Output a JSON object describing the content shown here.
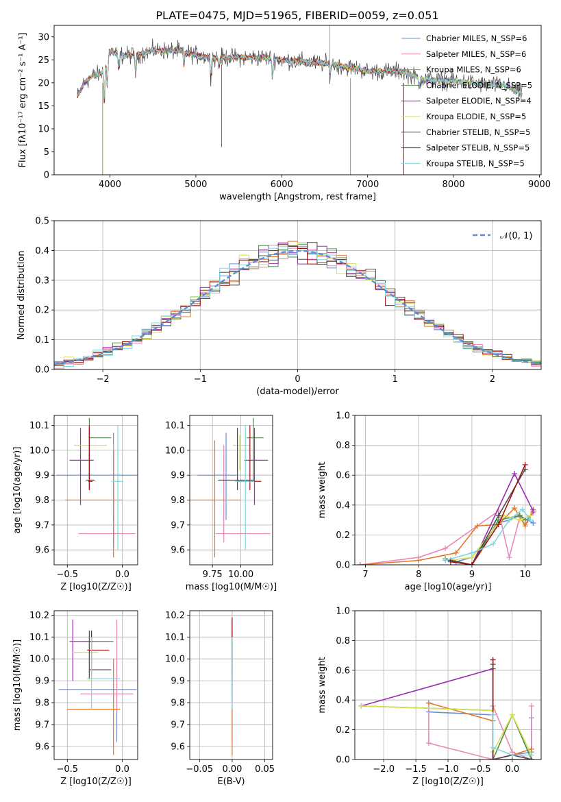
{
  "figure": {
    "title": "PLATE=0475, MJD=51965, FIBERID=0059, z=0.051"
  },
  "colors": {
    "Chabrier MILES": "#6a8fd8",
    "Salpeter MILES": "#e887b8",
    "Kroupa MILES": "#e2782a",
    "Chabrier ELODIE": "#4f8a4f",
    "Salpeter ELODIE": "#9a2fb0",
    "Kroupa ELODIE": "#d9e24a",
    "Chabrier STELIB": "#4a4a4a",
    "Salpeter STELIB": "#a01515",
    "Kroupa STELIB": "#7fd6e0",
    "grid": "#b0b0b0",
    "normal_curve": "#5b8ed6"
  },
  "chart_data": [
    {
      "id": "spectrum",
      "type": "line",
      "xlabel": "wavelength [Angstrom, rest frame]",
      "ylabel": "Flux [fλ10⁻¹⁷ erg cm⁻² s⁻¹ A⁻¹]",
      "xlim": [
        3350,
        9020
      ],
      "ylim": [
        0,
        32.5
      ],
      "xticks": [
        4000,
        5000,
        6000,
        7000,
        8000,
        9000
      ],
      "yticks": [
        0,
        5,
        10,
        15,
        20,
        25,
        30
      ],
      "legend_position": "top-right",
      "grid": false,
      "continuum": {
        "x": [
          3620,
          3700,
          3800,
          3900,
          3950,
          4000,
          4100,
          4300,
          4500,
          4800,
          5000,
          5200,
          5500,
          5800,
          6000,
          6300,
          6600,
          6900,
          7000,
          7200,
          7400,
          7600,
          7800,
          8000,
          8200,
          8400,
          8600,
          8800
        ],
        "y": [
          17,
          20,
          21.5,
          22,
          24,
          27,
          26,
          26,
          27,
          27,
          26,
          25.5,
          25.5,
          25.5,
          25,
          24.5,
          24,
          23,
          22.5,
          22.5,
          22.5,
          21,
          20.5,
          20.5,
          20,
          19.5,
          19.5,
          17.5
        ]
      },
      "absorption_features": [
        {
          "x": 3934,
          "depth": 7
        },
        {
          "x": 3969,
          "depth": 6
        },
        {
          "x": 4102,
          "depth": 3
        },
        {
          "x": 4300,
          "depth": 4
        },
        {
          "x": 4861,
          "depth": 3
        },
        {
          "x": 5175,
          "depth": 4
        },
        {
          "x": 5270,
          "depth": 2
        },
        {
          "x": 5893,
          "depth": 4
        },
        {
          "x": 6563,
          "depth": 2
        },
        {
          "x": 7600,
          "depth": 2
        }
      ],
      "series": [
        {
          "name": "Chabrier MILES, N_SSP=6"
        },
        {
          "name": "Salpeter MILES, N_SSP=6"
        },
        {
          "name": "Kroupa MILES, N_SSP=6"
        },
        {
          "name": "Chabrier ELODIE, N_SSP=5"
        },
        {
          "name": "Salpeter ELODIE, N_SSP=4"
        },
        {
          "name": "Kroupa ELODIE, N_SSP=5"
        },
        {
          "name": "Chabrier STELIB, N_SSP=5"
        },
        {
          "name": "Salpeter STELIB, N_SSP=5"
        },
        {
          "name": "Kroupa STELIB, N_SSP=5"
        }
      ]
    },
    {
      "id": "residuals",
      "type": "histogram",
      "xlabel": "(data-model)/error",
      "ylabel": "Normed distribution",
      "xlim": [
        -2.5,
        2.5
      ],
      "ylim": [
        0,
        0.5
      ],
      "xticks": [
        -2,
        -1,
        0,
        1,
        2
      ],
      "yticks": [
        0.0,
        0.1,
        0.2,
        0.3,
        0.4,
        0.5
      ],
      "grid": true,
      "legend_position": "top-right",
      "normal_curve_label": "𝒩(0, 1)",
      "bin_width": 0.1,
      "n_series": 9
    },
    {
      "id": "age_vs_Z",
      "type": "scatter",
      "xlabel": "Z [log10(Z/Z☉)]",
      "ylabel": "age [log10(age/yr)]",
      "xlim": [
        -0.62,
        0.14
      ],
      "ylim": [
        9.54,
        10.14
      ],
      "xticks": [
        -0.5,
        0.0
      ],
      "yticks": [
        9.6,
        9.7,
        9.8,
        9.9,
        10.0,
        10.1
      ],
      "points": [
        {
          "series": "Chabrier MILES",
          "x": -0.08,
          "y": 9.9,
          "xlo": -0.6,
          "xhi": 0.14,
          "ylo": 9.72,
          "yhi": 10.07
        },
        {
          "series": "Salpeter MILES",
          "x": -0.08,
          "y": 9.665,
          "xlo": -0.4,
          "xhi": 0.12,
          "ylo": 9.63,
          "yhi": 10.02
        },
        {
          "series": "Kroupa MILES",
          "x": -0.08,
          "y": 9.8,
          "xlo": -0.52,
          "xhi": 0.0,
          "ylo": 9.57,
          "yhi": 10.0
        },
        {
          "series": "Chabrier ELODIE",
          "x": -0.3,
          "y": 10.05,
          "xlo": -0.3,
          "xhi": -0.1,
          "ylo": 9.88,
          "yhi": 10.13
        },
        {
          "series": "Salpeter ELODIE",
          "x": -0.38,
          "y": 9.96,
          "xlo": -0.48,
          "xhi": -0.26,
          "ylo": 9.78,
          "yhi": 10.09
        },
        {
          "series": "Kroupa ELODIE",
          "x": -0.3,
          "y": 10.02,
          "xlo": -0.44,
          "xhi": -0.14,
          "ylo": 9.92,
          "yhi": 10.06
        },
        {
          "series": "Chabrier STELIB",
          "x": -0.3,
          "y": 9.88,
          "xlo": -0.33,
          "xhi": -0.25,
          "ylo": 9.84,
          "yhi": 10.09
        },
        {
          "series": "Salpeter STELIB",
          "x": -0.3,
          "y": 9.875,
          "xlo": -0.31,
          "xhi": -0.27,
          "ylo": 9.84,
          "yhi": 10.1
        },
        {
          "series": "Kroupa STELIB",
          "x": -0.04,
          "y": 9.875,
          "xlo": -0.1,
          "xhi": 0.01,
          "ylo": 9.6,
          "yhi": 10.1
        }
      ]
    },
    {
      "id": "age_vs_mass",
      "type": "scatter",
      "xlabel": "mass [log10(M/M☉)]",
      "ylabel": "",
      "xlim": [
        9.55,
        10.28
      ],
      "ylim": [
        9.54,
        10.14
      ],
      "xticks": [
        9.75,
        10.0
      ],
      "tick_labels_x": [
        "9.75",
        "10.00"
      ],
      "yticks": [
        9.6,
        9.7,
        9.8,
        9.9,
        10.0,
        10.1
      ],
      "points": [
        {
          "series": "Chabrier MILES",
          "x": 9.87,
          "y": 9.9,
          "xlo": 9.62,
          "xhi": 9.97,
          "ylo": 9.72,
          "yhi": 10.07
        },
        {
          "series": "Salpeter MILES",
          "x": 9.85,
          "y": 9.665,
          "xlo": 9.78,
          "xhi": 10.26,
          "ylo": 9.63,
          "yhi": 10.02
        },
        {
          "series": "Kroupa MILES",
          "x": 9.77,
          "y": 9.8,
          "xlo": 9.55,
          "xhi": 10.0,
          "ylo": 9.57,
          "yhi": 10.04
        },
        {
          "series": "Chabrier ELODIE",
          "x": 10.11,
          "y": 10.05,
          "xlo": 10.05,
          "xhi": 10.2,
          "ylo": 9.88,
          "yhi": 10.13
        },
        {
          "series": "Salpeter ELODIE",
          "x": 10.12,
          "y": 9.96,
          "xlo": 10.03,
          "xhi": 10.24,
          "ylo": 9.78,
          "yhi": 10.09
        },
        {
          "series": "Kroupa ELODIE",
          "x": 9.99,
          "y": 10.02,
          "xlo": 9.93,
          "xhi": 10.08,
          "ylo": 9.92,
          "yhi": 10.06
        },
        {
          "series": "Chabrier STELIB",
          "x": 9.97,
          "y": 9.88,
          "xlo": 9.8,
          "xhi": 10.12,
          "ylo": 9.84,
          "yhi": 10.09
        },
        {
          "series": "Salpeter STELIB",
          "x": 10.08,
          "y": 9.875,
          "xlo": 9.97,
          "xhi": 10.18,
          "ylo": 9.84,
          "yhi": 10.1
        },
        {
          "series": "Kroupa STELIB",
          "x": 10.04,
          "y": 9.875,
          "xlo": 9.95,
          "xhi": 10.12,
          "ylo": 9.6,
          "yhi": 10.1
        }
      ]
    },
    {
      "id": "weight_vs_age",
      "type": "line",
      "xlabel": "age  [log10(age/yr)]",
      "ylabel": "mass weight",
      "xlim": [
        6.8,
        10.3
      ],
      "ylim": [
        0,
        1.0
      ],
      "xticks": [
        7,
        8,
        9,
        10
      ],
      "yticks": [
        0.0,
        0.2,
        0.4,
        0.6,
        0.8,
        1.0
      ],
      "grid": true,
      "series": [
        {
          "name": "Chabrier MILES",
          "x": [
            8.7,
            9.0,
            9.5,
            9.7,
            9.9,
            10.05,
            10.15
          ],
          "y": [
            0.02,
            0.05,
            0.28,
            0.3,
            0.33,
            0.3,
            0.28
          ]
        },
        {
          "name": "Salpeter MILES",
          "x": [
            6.9,
            8.0,
            8.5,
            9.5,
            9.7,
            9.9,
            10.0,
            10.15
          ],
          "y": [
            0.0,
            0.05,
            0.11,
            0.36,
            0.05,
            0.32,
            0.27,
            0.35
          ]
        },
        {
          "name": "Kroupa MILES",
          "x": [
            6.9,
            8.0,
            8.7,
            9.1,
            9.5,
            9.8,
            10.0,
            10.15
          ],
          "y": [
            0.0,
            0.03,
            0.08,
            0.26,
            0.27,
            0.38,
            0.26,
            0.37
          ]
        },
        {
          "name": "Chabrier ELODIE",
          "x": [
            8.5,
            9.0,
            9.5,
            9.9,
            10.0
          ],
          "y": [
            0.04,
            0.0,
            0.3,
            0.33,
            0.3
          ]
        },
        {
          "name": "Salpeter ELODIE",
          "x": [
            8.6,
            9.0,
            9.8,
            10.15
          ],
          "y": [
            0.03,
            0.0,
            0.61,
            0.36
          ]
        },
        {
          "name": "Kroupa ELODIE",
          "x": [
            8.6,
            9.0,
            9.6,
            9.9,
            10.1
          ],
          "y": [
            0.03,
            0.05,
            0.33,
            0.3,
            0.33
          ]
        },
        {
          "name": "Chabrier STELIB",
          "x": [
            8.6,
            9.0,
            9.5,
            10.0
          ],
          "y": [
            0.03,
            0.0,
            0.33,
            0.64
          ]
        },
        {
          "name": "Salpeter STELIB",
          "x": [
            8.6,
            9.0,
            9.5,
            10.0
          ],
          "y": [
            0.02,
            0.0,
            0.27,
            0.67
          ]
        },
        {
          "name": "Kroupa STELIB",
          "x": [
            8.5,
            9.0,
            9.4,
            9.7,
            9.95,
            10.1
          ],
          "y": [
            0.03,
            0.08,
            0.14,
            0.3,
            0.37,
            0.3
          ]
        }
      ]
    },
    {
      "id": "mass_vs_Z",
      "type": "scatter",
      "xlabel": "Z [log10(Z/Z☉)]",
      "ylabel": "mass [log10(M/M☉)]",
      "xlim": [
        -0.62,
        0.14
      ],
      "ylim": [
        9.54,
        10.22
      ],
      "xticks": [
        -0.5,
        0.0
      ],
      "yticks": [
        9.6,
        9.7,
        9.8,
        9.9,
        10.0,
        10.1,
        10.2
      ],
      "points": [
        {
          "series": "Chabrier MILES",
          "x": -0.05,
          "y": 9.86,
          "xlo": -0.58,
          "xhi": 0.13,
          "ylo": 9.62,
          "yhi": 10.0
        },
        {
          "series": "Salpeter MILES",
          "x": -0.05,
          "y": 9.84,
          "xlo": -0.38,
          "xhi": 0.1,
          "ylo": 9.76,
          "yhi": 10.18
        },
        {
          "series": "Kroupa MILES",
          "x": -0.08,
          "y": 9.77,
          "xlo": -0.5,
          "xhi": -0.02,
          "ylo": 9.56,
          "yhi": 10.0
        },
        {
          "series": "Chabrier ELODIE",
          "x": -0.28,
          "y": 10.08,
          "xlo": -0.32,
          "xhi": -0.08,
          "ylo": 9.97,
          "yhi": 10.12
        },
        {
          "series": "Salpeter ELODIE",
          "x": -0.45,
          "y": 10.08,
          "xlo": -0.48,
          "xhi": -0.26,
          "ylo": 9.9,
          "yhi": 10.18
        },
        {
          "series": "Kroupa ELODIE",
          "x": -0.3,
          "y": 10.03,
          "xlo": -0.45,
          "xhi": -0.22,
          "ylo": 9.9,
          "yhi": 10.09
        },
        {
          "series": "Chabrier STELIB",
          "x": -0.3,
          "y": 9.95,
          "xlo": -0.3,
          "xhi": -0.1,
          "ylo": 9.91,
          "yhi": 10.13
        },
        {
          "series": "Salpeter STELIB",
          "x": -0.28,
          "y": 10.04,
          "xlo": -0.32,
          "xhi": -0.12,
          "ylo": 9.92,
          "yhi": 10.13
        },
        {
          "series": "Kroupa STELIB",
          "x": -0.28,
          "y": 9.91,
          "xlo": -0.32,
          "xhi": -0.02,
          "ylo": 9.77,
          "yhi": 10.1
        }
      ]
    },
    {
      "id": "mass_vs_ebv",
      "type": "scatter",
      "xlabel": "E(B-V)",
      "ylabel": "",
      "xlim": [
        -0.065,
        0.062
      ],
      "ylim": [
        9.54,
        10.22
      ],
      "xticks": [
        -0.05,
        0.0,
        0.05
      ],
      "yticks": [
        9.6,
        9.7,
        9.8,
        9.9,
        10.0,
        10.1,
        10.2
      ],
      "points": [
        {
          "series": "Chabrier MILES",
          "x": 0.0,
          "y": 9.86,
          "ylo": 9.62,
          "yhi": 10.0
        },
        {
          "series": "Salpeter MILES",
          "x": 0.0,
          "y": 9.84,
          "ylo": 9.76,
          "yhi": 10.18
        },
        {
          "series": "Kroupa MILES",
          "x": 0.0,
          "y": 9.77,
          "ylo": 9.56,
          "yhi": 10.0
        },
        {
          "series": "Chabrier ELODIE",
          "x": 0.0,
          "y": 10.08,
          "ylo": 9.97,
          "yhi": 10.12
        },
        {
          "series": "Salpeter ELODIE",
          "x": 0.0,
          "y": 10.08,
          "ylo": 9.9,
          "yhi": 10.18
        },
        {
          "series": "Kroupa ELODIE",
          "x": 0.0,
          "y": 10.03,
          "ylo": 9.9,
          "yhi": 10.09
        },
        {
          "series": "Chabrier STELIB",
          "x": 0.0,
          "y": 9.95,
          "ylo": 9.81,
          "yhi": 10.13
        },
        {
          "series": "Salpeter STELIB",
          "x": 0.0,
          "y": 10.04,
          "ylo": 9.92,
          "yhi": 10.19
        },
        {
          "series": "Kroupa STELIB",
          "x": 0.0,
          "y": 9.91,
          "ylo": 9.77,
          "yhi": 10.1
        }
      ]
    },
    {
      "id": "weight_vs_Z",
      "type": "line",
      "xlabel": "Z [log10(Z/Z☉)]",
      "ylabel": "mass weight",
      "xlim": [
        -2.45,
        0.45
      ],
      "ylim": [
        0,
        1.0
      ],
      "xticks": [
        -2.0,
        -1.5,
        -1.0,
        -0.5,
        0.0
      ],
      "yticks": [
        0.0,
        0.2,
        0.4,
        0.6,
        0.8,
        1.0
      ],
      "grid": true,
      "series": [
        {
          "name": "Chabrier MILES",
          "x": [
            -1.3,
            -0.3,
            -0.3,
            0.0,
            0.3,
            0.3
          ],
          "y": [
            0.32,
            0.3,
            0.0,
            0.03,
            0.05,
            0.28
          ]
        },
        {
          "name": "Salpeter MILES",
          "x": [
            -1.3,
            -1.3,
            -0.3,
            -0.3,
            0.0,
            0.3,
            0.3
          ],
          "y": [
            0.38,
            0.11,
            0.0,
            0.36,
            0.05,
            0.0,
            0.36
          ]
        },
        {
          "name": "Kroupa MILES",
          "x": [
            -1.3,
            -0.3,
            -0.3,
            0.0,
            0.3
          ],
          "y": [
            0.38,
            0.26,
            0.0,
            0.03,
            0.07
          ]
        },
        {
          "name": "Chabrier ELODIE",
          "x": [
            -2.35,
            -0.3,
            -0.3,
            0.0,
            0.3
          ],
          "y": [
            0.36,
            0.33,
            0.0,
            0.3,
            0.0
          ]
        },
        {
          "name": "Salpeter ELODIE",
          "x": [
            -2.35,
            -0.3,
            -0.3,
            0.0
          ],
          "y": [
            0.36,
            0.61,
            0.0,
            0.03
          ]
        },
        {
          "name": "Kroupa ELODIE",
          "x": [
            -2.35,
            -0.3,
            -0.3,
            0.0,
            0.3
          ],
          "y": [
            0.36,
            0.33,
            0.05,
            0.3,
            0.03
          ]
        },
        {
          "name": "Chabrier STELIB",
          "x": [
            -0.3,
            -0.3,
            0.0,
            0.3
          ],
          "y": [
            0.64,
            0.0,
            0.03,
            0.0
          ]
        },
        {
          "name": "Salpeter STELIB",
          "x": [
            -0.3,
            -0.3,
            0.0,
            0.3
          ],
          "y": [
            0.67,
            0.0,
            0.0,
            0.0
          ]
        },
        {
          "name": "Kroupa STELIB",
          "x": [
            -0.3,
            -0.3,
            0.0,
            0.3
          ],
          "y": [
            0.3,
            0.08,
            0.03,
            0.03
          ]
        }
      ]
    }
  ]
}
